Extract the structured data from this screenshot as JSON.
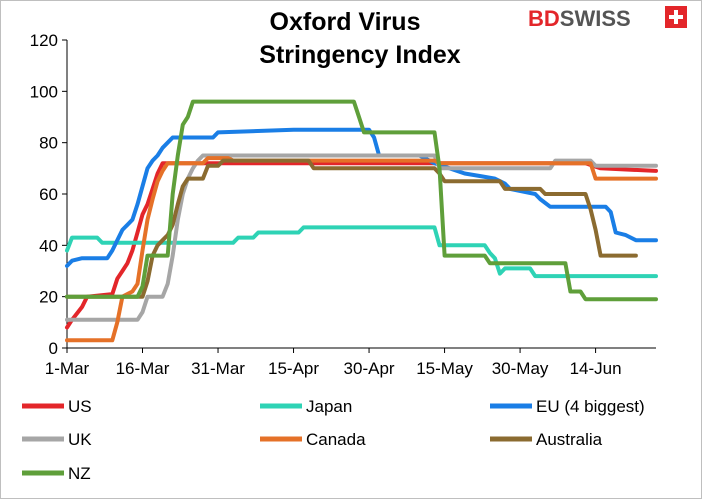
{
  "logo": {
    "brand_a": "BD",
    "brand_b": "SWISS",
    "color_a": "#e3262a",
    "color_b": "#555555"
  },
  "chart_data": {
    "type": "line",
    "title_lines": [
      "Oxford Virus",
      "Stringency Index"
    ],
    "xlabel": "",
    "ylabel": "",
    "ylim": [
      0,
      120
    ],
    "yticks": [
      0,
      20,
      40,
      60,
      80,
      100,
      120
    ],
    "xlim": [
      0,
      117
    ],
    "xticks": [
      {
        "x": 0,
        "label": "1-Mar"
      },
      {
        "x": 15,
        "label": "16-Mar"
      },
      {
        "x": 30,
        "label": "31-Mar"
      },
      {
        "x": 45,
        "label": "15-Apr"
      },
      {
        "x": 60,
        "label": "30-Apr"
      },
      {
        "x": 75,
        "label": "15-May"
      },
      {
        "x": 90,
        "label": "30-May"
      },
      {
        "x": 105,
        "label": "14-Jun"
      }
    ],
    "x_unit": "days since 1-Mar",
    "grid": false,
    "legend_position": "bottom",
    "series": [
      {
        "name": "US",
        "color": "#e3262a",
        "points": [
          [
            0,
            8
          ],
          [
            1,
            11
          ],
          [
            3,
            16
          ],
          [
            4,
            20
          ],
          [
            9,
            21
          ],
          [
            10,
            27
          ],
          [
            11,
            30
          ],
          [
            12,
            33
          ],
          [
            13,
            38
          ],
          [
            14,
            45
          ],
          [
            15,
            52
          ],
          [
            16,
            56
          ],
          [
            17,
            62
          ],
          [
            18,
            68
          ],
          [
            19,
            72
          ],
          [
            74,
            72
          ],
          [
            103,
            72
          ],
          [
            106,
            70
          ],
          [
            117,
            69
          ]
        ]
      },
      {
        "name": "Japan",
        "color": "#2ed3b5",
        "points": [
          [
            0,
            38
          ],
          [
            1,
            43
          ],
          [
            6,
            43
          ],
          [
            7,
            41
          ],
          [
            33,
            41
          ],
          [
            34,
            43
          ],
          [
            37,
            43
          ],
          [
            38,
            45
          ],
          [
            46,
            45
          ],
          [
            47,
            47
          ],
          [
            73,
            47
          ],
          [
            74,
            40
          ],
          [
            83,
            40
          ],
          [
            84,
            37
          ],
          [
            85,
            35
          ],
          [
            86,
            29
          ],
          [
            87,
            31
          ],
          [
            92,
            31
          ],
          [
            93,
            28
          ],
          [
            117,
            28
          ]
        ]
      },
      {
        "name": "EU (4 biggest)",
        "color": "#1a7ee6",
        "points": [
          [
            0,
            32
          ],
          [
            1,
            34
          ],
          [
            3,
            35
          ],
          [
            8,
            35
          ],
          [
            9,
            38
          ],
          [
            10,
            42
          ],
          [
            11,
            46
          ],
          [
            13,
            50
          ],
          [
            14,
            56
          ],
          [
            15,
            63
          ],
          [
            16,
            70
          ],
          [
            17,
            73
          ],
          [
            18,
            75
          ],
          [
            19,
            78
          ],
          [
            21,
            82
          ],
          [
            29,
            82
          ],
          [
            30,
            84
          ],
          [
            45,
            85
          ],
          [
            60,
            85
          ],
          [
            61,
            82
          ],
          [
            62,
            75
          ],
          [
            70,
            75
          ],
          [
            73,
            72
          ],
          [
            76,
            70
          ],
          [
            79,
            68
          ],
          [
            82,
            67
          ],
          [
            85,
            66
          ],
          [
            87,
            64
          ],
          [
            88,
            62
          ],
          [
            93,
            60
          ],
          [
            94,
            58
          ],
          [
            96,
            55
          ],
          [
            107,
            55
          ],
          [
            108,
            53
          ],
          [
            109,
            45
          ],
          [
            111,
            44
          ],
          [
            113,
            42
          ],
          [
            117,
            42
          ]
        ]
      },
      {
        "name": "UK",
        "color": "#a6a6a6",
        "points": [
          [
            0,
            11
          ],
          [
            14,
            11
          ],
          [
            15,
            14
          ],
          [
            16,
            20
          ],
          [
            19,
            20
          ],
          [
            20,
            25
          ],
          [
            21,
            36
          ],
          [
            22,
            50
          ],
          [
            23,
            60
          ],
          [
            24,
            66
          ],
          [
            25,
            70
          ],
          [
            26,
            73
          ],
          [
            27,
            75
          ],
          [
            73,
            75
          ],
          [
            74,
            70
          ],
          [
            96,
            70
          ],
          [
            97,
            73
          ],
          [
            104,
            73
          ],
          [
            105,
            71
          ],
          [
            117,
            71
          ]
        ]
      },
      {
        "name": "Canada",
        "color": "#e57128",
        "points": [
          [
            0,
            3
          ],
          [
            9,
            3
          ],
          [
            10,
            10
          ],
          [
            11,
            20
          ],
          [
            13,
            22
          ],
          [
            14,
            25
          ],
          [
            15,
            38
          ],
          [
            16,
            50
          ],
          [
            17,
            58
          ],
          [
            18,
            65
          ],
          [
            19,
            69
          ],
          [
            20,
            72
          ],
          [
            27,
            72
          ],
          [
            28,
            74
          ],
          [
            32,
            74
          ],
          [
            33,
            73
          ],
          [
            73,
            73
          ],
          [
            74,
            72
          ],
          [
            104,
            72
          ],
          [
            105,
            66
          ],
          [
            117,
            66
          ]
        ]
      },
      {
        "name": "Australia",
        "color": "#8b6b30",
        "points": [
          [
            0,
            20
          ],
          [
            15,
            20
          ],
          [
            16,
            26
          ],
          [
            17,
            36
          ],
          [
            18,
            40
          ],
          [
            19,
            42
          ],
          [
            20,
            44
          ],
          [
            21,
            48
          ],
          [
            22,
            56
          ],
          [
            23,
            63
          ],
          [
            24,
            66
          ],
          [
            27,
            66
          ],
          [
            28,
            71
          ],
          [
            30,
            71
          ],
          [
            31,
            73
          ],
          [
            48,
            73
          ],
          [
            49,
            70
          ],
          [
            73,
            70
          ],
          [
            74,
            68
          ],
          [
            75,
            65
          ],
          [
            86,
            65
          ],
          [
            87,
            62
          ],
          [
            94,
            62
          ],
          [
            95,
            60
          ],
          [
            103,
            60
          ],
          [
            104,
            54
          ],
          [
            105,
            46
          ],
          [
            106,
            36
          ],
          [
            113,
            36
          ]
        ]
      },
      {
        "name": "NZ",
        "color": "#5f9f3a",
        "points": [
          [
            0,
            20
          ],
          [
            14,
            20
          ],
          [
            15,
            24
          ],
          [
            16,
            36
          ],
          [
            20,
            36
          ],
          [
            21,
            60
          ],
          [
            22,
            75
          ],
          [
            23,
            87
          ],
          [
            24,
            90
          ],
          [
            25,
            96
          ],
          [
            57,
            96
          ],
          [
            58,
            90
          ],
          [
            59,
            84
          ],
          [
            73,
            84
          ],
          [
            74,
            70
          ],
          [
            75,
            36
          ],
          [
            83,
            36
          ],
          [
            84,
            33
          ],
          [
            99,
            33
          ],
          [
            100,
            22
          ],
          [
            102,
            22
          ],
          [
            103,
            19
          ],
          [
            117,
            19
          ]
        ]
      }
    ]
  }
}
